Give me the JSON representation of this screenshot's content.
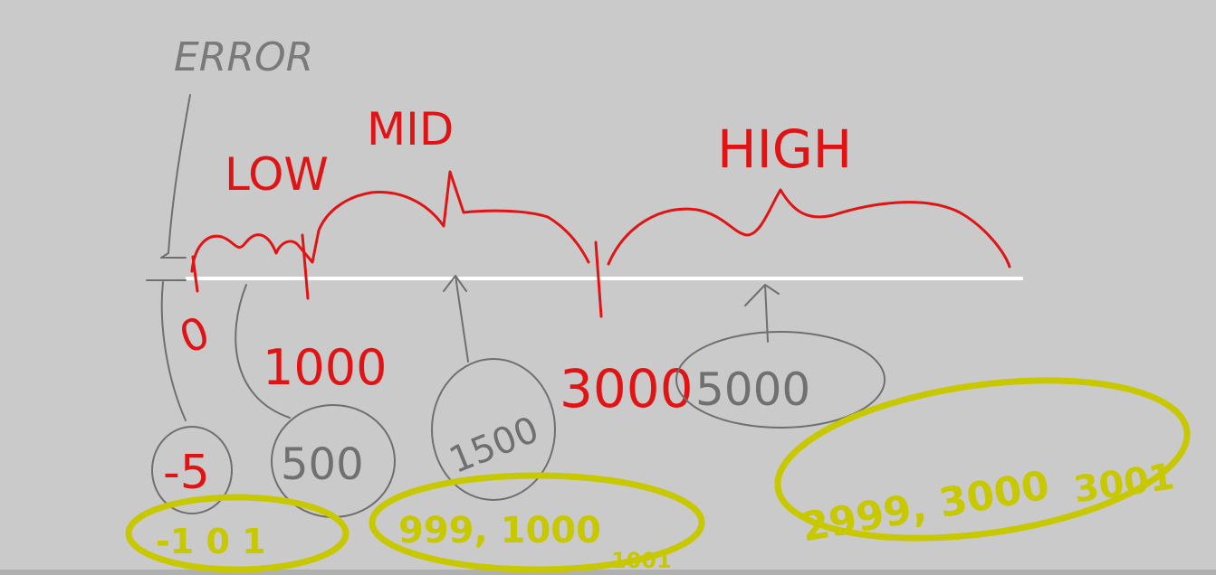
{
  "colors": {
    "background": "#cacaca",
    "axis": "#ffffff",
    "red": "#e01414",
    "gray": "#6f6f6f",
    "yellow": "#c8c800"
  },
  "labels": {
    "error": "ERROR",
    "low": "LOW",
    "mid": "MID",
    "high": "HIGH"
  },
  "boundaries": {
    "zero": "0",
    "thousand": "1000",
    "three_thousand": "3000"
  },
  "examples": {
    "neg_five": "-5",
    "five_hundred": "500",
    "fifteen_hundred": "1500",
    "five_thousand": "5000"
  },
  "boundary_tests": {
    "around_zero": "-1  0  1",
    "around_thousand_main": "999, 1000",
    "around_thousand_sub": "1001",
    "around_three_thousand_a": "2999, 3000",
    "around_three_thousand_b": "3001"
  }
}
